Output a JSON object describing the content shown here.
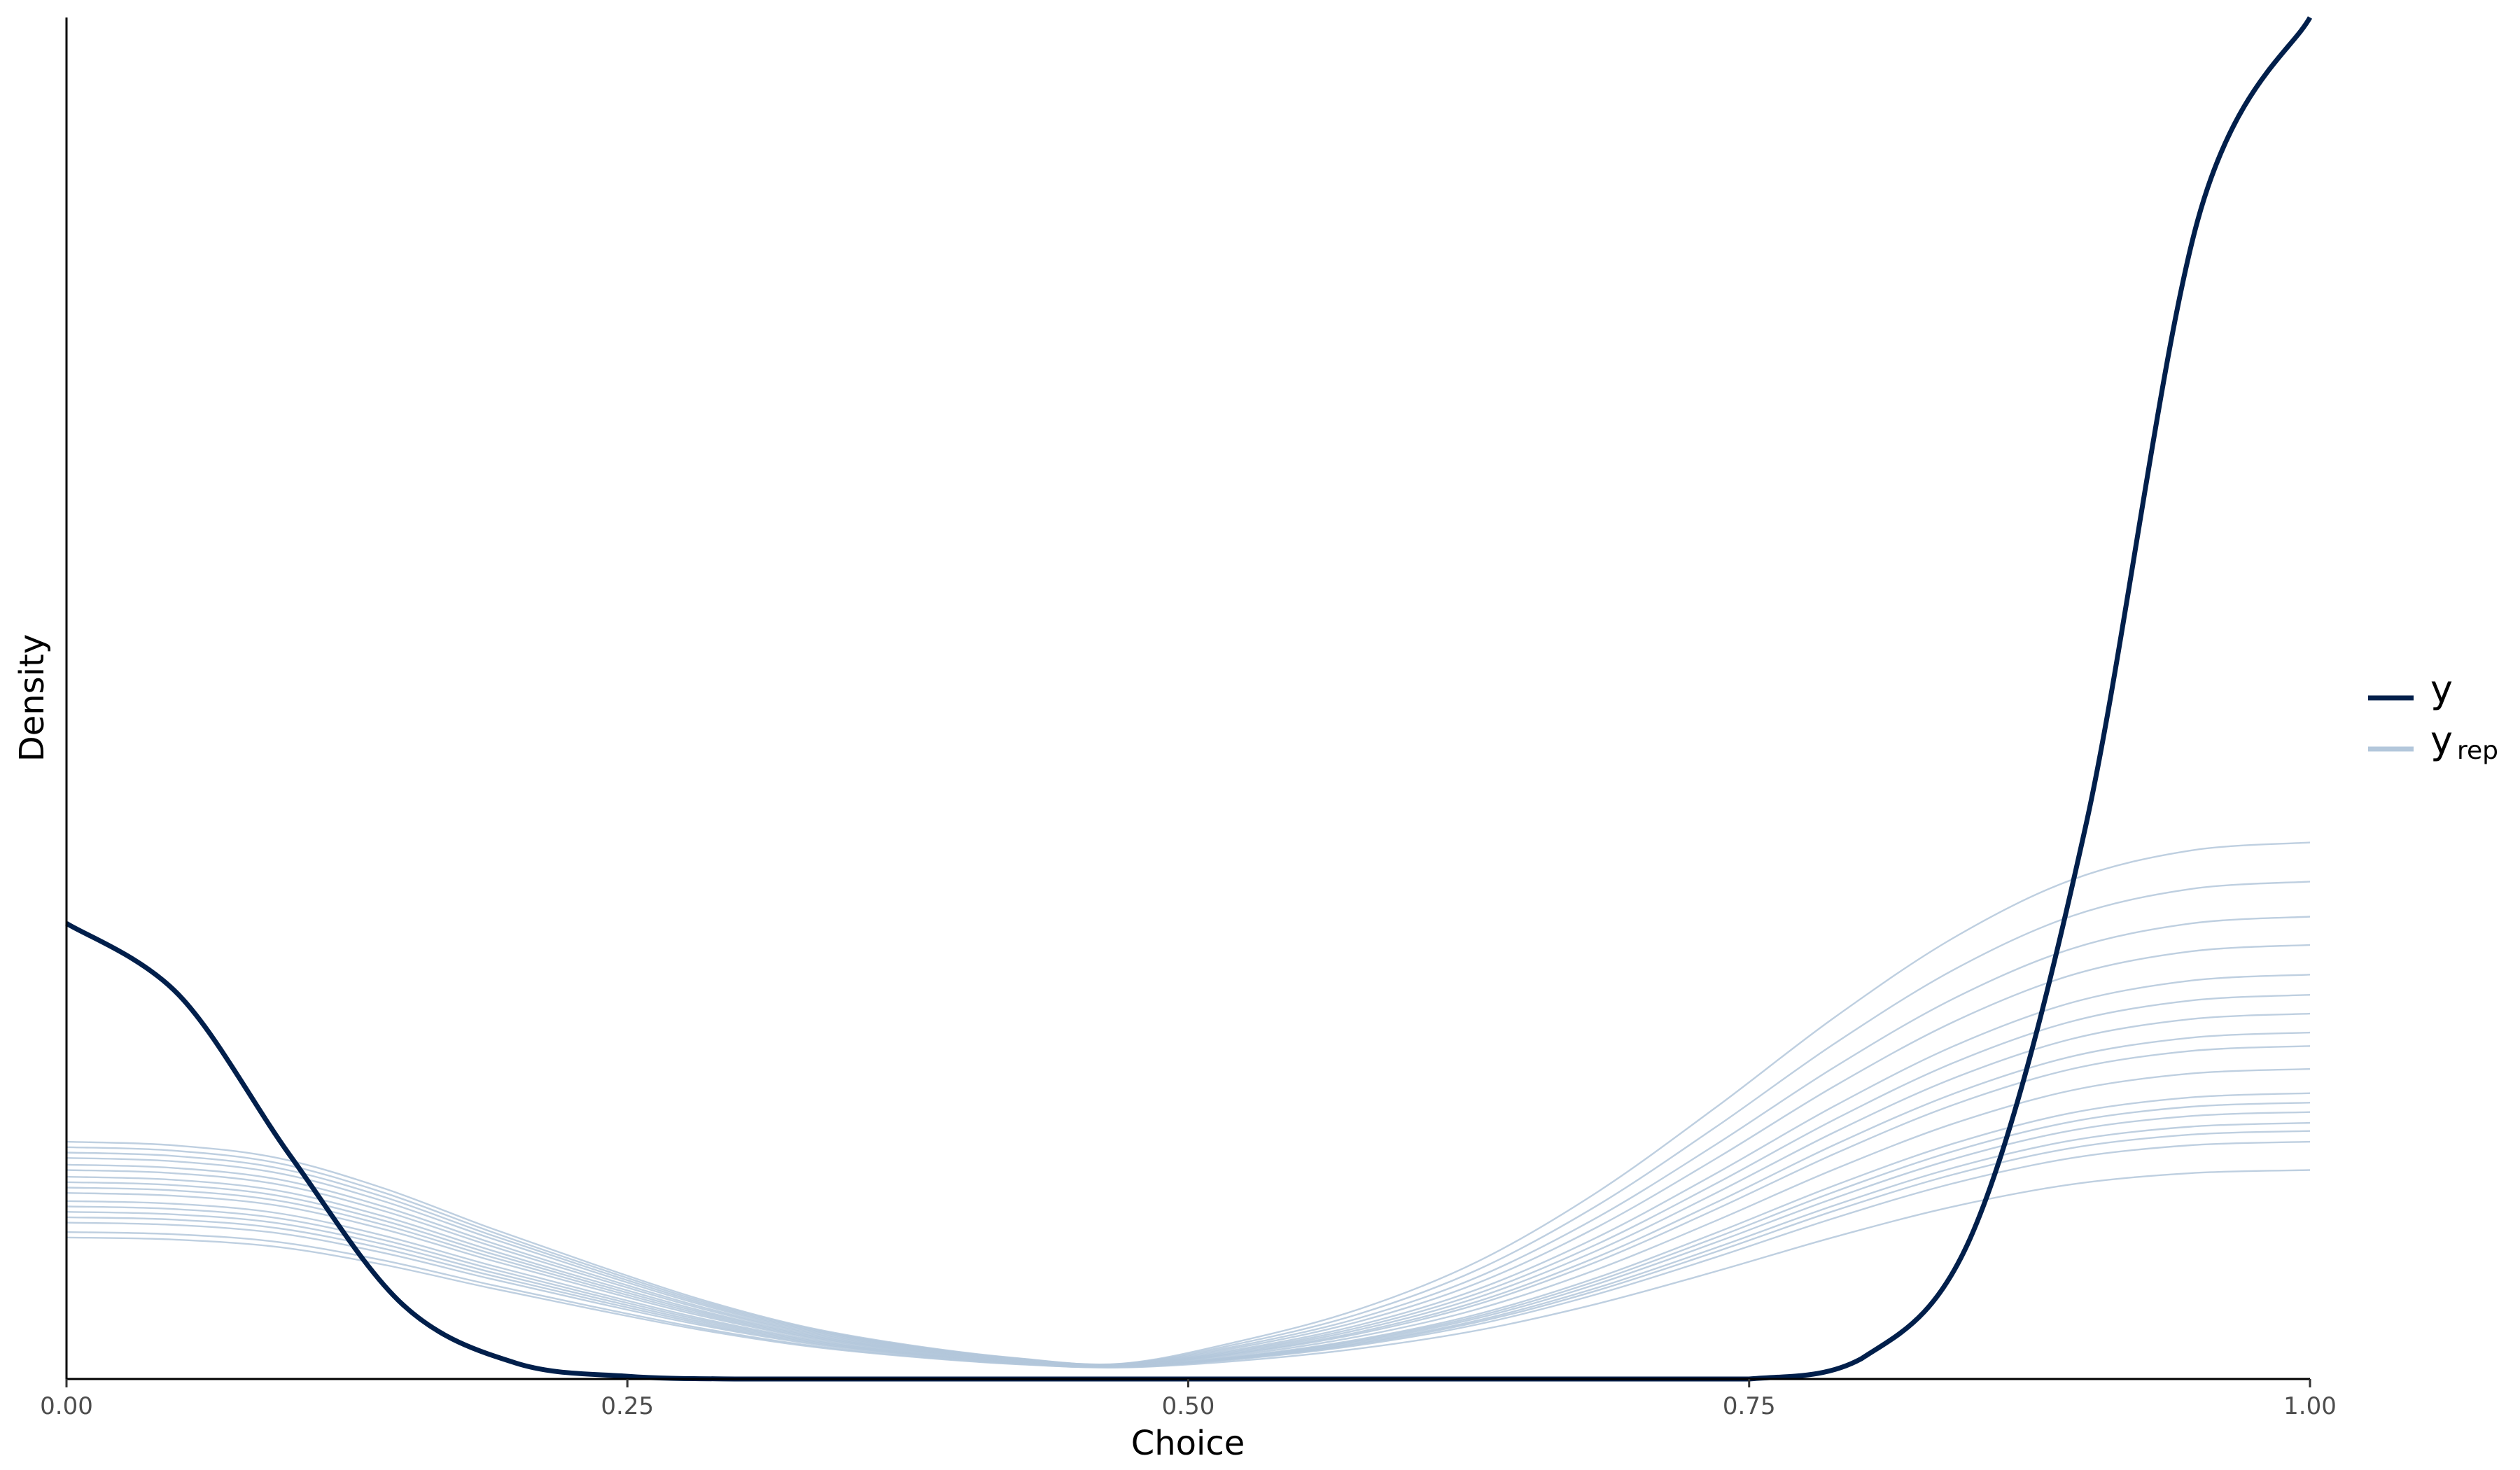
{
  "chart_data": {
    "type": "line",
    "title": "",
    "xlabel": "Choice",
    "ylabel": "Density",
    "xlim": [
      0,
      1
    ],
    "ylim": [
      0,
      10.1
    ],
    "x_ticks": [
      "0.00",
      "0.25",
      "0.50",
      "0.75",
      "1.00"
    ],
    "x_tick_values": [
      0,
      0.25,
      0.5,
      0.75,
      1
    ],
    "grid": false,
    "legend_position": "right",
    "legend": [
      {
        "label": "y",
        "sub": "",
        "color": "#011f4b"
      },
      {
        "label": "y",
        "sub": "rep",
        "color": "#b3c7db"
      }
    ],
    "x": [
      0,
      0.05,
      0.1,
      0.15,
      0.2,
      0.25,
      0.3,
      0.35,
      0.4,
      0.45,
      0.5,
      0.55,
      0.6,
      0.65,
      0.7,
      0.75,
      0.8,
      0.85,
      0.9,
      0.95,
      1.0
    ],
    "series": [
      {
        "name": "y",
        "role": "observed",
        "color": "#011f4b",
        "values": [
          3.38,
          2.85,
          1.65,
          0.55,
          0.12,
          0.02,
          0,
          0,
          0,
          0,
          0,
          0,
          0,
          0,
          0,
          0,
          0.15,
          1.1,
          4.1,
          8.6,
          10.1
        ]
      },
      {
        "name": "",
        "role": "replicated",
        "color": "#b3c7db",
        "rep_y0": [
          1.76,
          1.72,
          1.68,
          1.64,
          1.59,
          1.55,
          1.5,
          1.46,
          1.42,
          1.38,
          1.32,
          1.28,
          1.24,
          1.2,
          1.16,
          1.09,
          1.05
        ],
        "rep_y1": [
          3.98,
          3.69,
          3.43,
          3.22,
          3.0,
          2.85,
          2.71,
          2.57,
          2.47,
          2.3,
          2.12,
          2.05,
          1.98,
          1.9,
          1.84,
          1.76,
          1.55
        ],
        "rep_mid": 0.47,
        "rep_plateau": 0.045,
        "rep_left_shape": [
          1,
          0.985,
          0.93,
          0.8,
          0.63,
          0.47,
          0.32,
          0.2,
          0.12,
          0.065,
          0.04
        ],
        "rep_right_shape": [
          0.04,
          0.06,
          0.12,
          0.21,
          0.34,
          0.5,
          0.67,
          0.82,
          0.93,
          0.985,
          1
        ]
      }
    ]
  }
}
